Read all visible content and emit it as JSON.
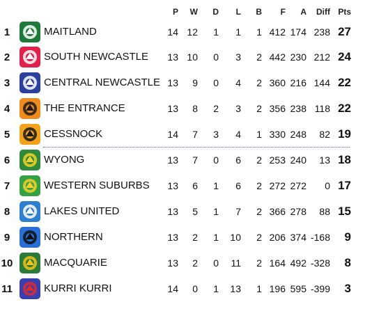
{
  "header": {
    "p": "P",
    "w": "W",
    "d": "D",
    "l": "L",
    "b": "B",
    "f": "F",
    "a": "A",
    "diff": "Diff",
    "pts": "Pts"
  },
  "colors": {
    "separator": "#3a6ea5"
  },
  "rows": [
    {
      "rank": "1",
      "team": "MAITLAND",
      "p": "14",
      "w": "12",
      "d": "1",
      "l": "1",
      "b": "1",
      "f": "412",
      "a": "174",
      "diff": "238",
      "pts": "27",
      "logo": "maitland-pickers-logo",
      "logo_bg": "#1f7a3a",
      "logo_fg": "#ffffff"
    },
    {
      "rank": "2",
      "team": "SOUTH NEWCASTLE",
      "p": "13",
      "w": "10",
      "d": "0",
      "l": "3",
      "b": "2",
      "f": "442",
      "a": "230",
      "diff": "212",
      "pts": "24",
      "logo": "south-newcastle-lions-logo",
      "logo_bg": "#e0214a",
      "logo_fg": "#ffffff"
    },
    {
      "rank": "3",
      "team": "CENTRAL NEWCASTLE",
      "p": "13",
      "w": "9",
      "d": "0",
      "l": "4",
      "b": "2",
      "f": "360",
      "a": "216",
      "diff": "144",
      "pts": "22",
      "logo": "central-newcastle-logo",
      "logo_bg": "#2d3f9e",
      "logo_fg": "#ffffff"
    },
    {
      "rank": "4",
      "team": "THE ENTRANCE",
      "p": "13",
      "w": "8",
      "d": "2",
      "l": "3",
      "b": "2",
      "f": "356",
      "a": "238",
      "diff": "118",
      "pts": "22",
      "logo": "the-entrance-tigers-logo",
      "logo_bg": "#f08a1c",
      "logo_fg": "#1a1a1a"
    },
    {
      "rank": "5",
      "team": "CESSNOCK",
      "p": "14",
      "w": "7",
      "d": "3",
      "l": "4",
      "b": "1",
      "f": "330",
      "a": "248",
      "diff": "82",
      "pts": "19",
      "logo": "cessnock-goannas-logo",
      "logo_bg": "#f2a31b",
      "logo_fg": "#1a1a1a"
    },
    {
      "rank": "6",
      "team": "WYONG",
      "p": "13",
      "w": "7",
      "d": "0",
      "l": "6",
      "b": "2",
      "f": "253",
      "a": "240",
      "diff": "13",
      "pts": "18",
      "logo": "wyong-roos-logo",
      "logo_bg": "#2f8a3a",
      "logo_fg": "#f2d12b"
    },
    {
      "rank": "7",
      "team": "WESTERN SUBURBS",
      "p": "13",
      "w": "6",
      "d": "1",
      "l": "6",
      "b": "2",
      "f": "272",
      "a": "272",
      "diff": "0",
      "pts": "17",
      "logo": "western-suburbs-rosellas-logo",
      "logo_bg": "#36a045",
      "logo_fg": "#f2d12b"
    },
    {
      "rank": "8",
      "team": "LAKES UNITED",
      "p": "13",
      "w": "5",
      "d": "1",
      "l": "7",
      "b": "2",
      "f": "366",
      "a": "278",
      "diff": "88",
      "pts": "15",
      "logo": "lakes-united-seagulls-logo",
      "logo_bg": "#2f7fd0",
      "logo_fg": "#ffffff"
    },
    {
      "rank": "9",
      "team": "NORTHERN",
      "p": "13",
      "w": "2",
      "d": "1",
      "l": "10",
      "b": "2",
      "f": "206",
      "a": "374",
      "diff": "-168",
      "pts": "9",
      "logo": "northern-hawks-logo",
      "logo_bg": "#2a6fd6",
      "logo_fg": "#111111"
    },
    {
      "rank": "10",
      "team": "MACQUARIE",
      "p": "13",
      "w": "2",
      "d": "0",
      "l": "11",
      "b": "2",
      "f": "164",
      "a": "492",
      "diff": "-328",
      "pts": "8",
      "logo": "macquarie-scorpions-logo",
      "logo_bg": "#2b7a3a",
      "logo_fg": "#f2c21b"
    },
    {
      "rank": "11",
      "team": "KURRI KURRI",
      "p": "14",
      "w": "0",
      "d": "1",
      "l": "13",
      "b": "1",
      "f": "196",
      "a": "595",
      "diff": "-399",
      "pts": "3",
      "logo": "kurri-kurri-bulldogs-logo",
      "logo_bg": "#3a3fb0",
      "logo_fg": "#e02a2a"
    }
  ]
}
